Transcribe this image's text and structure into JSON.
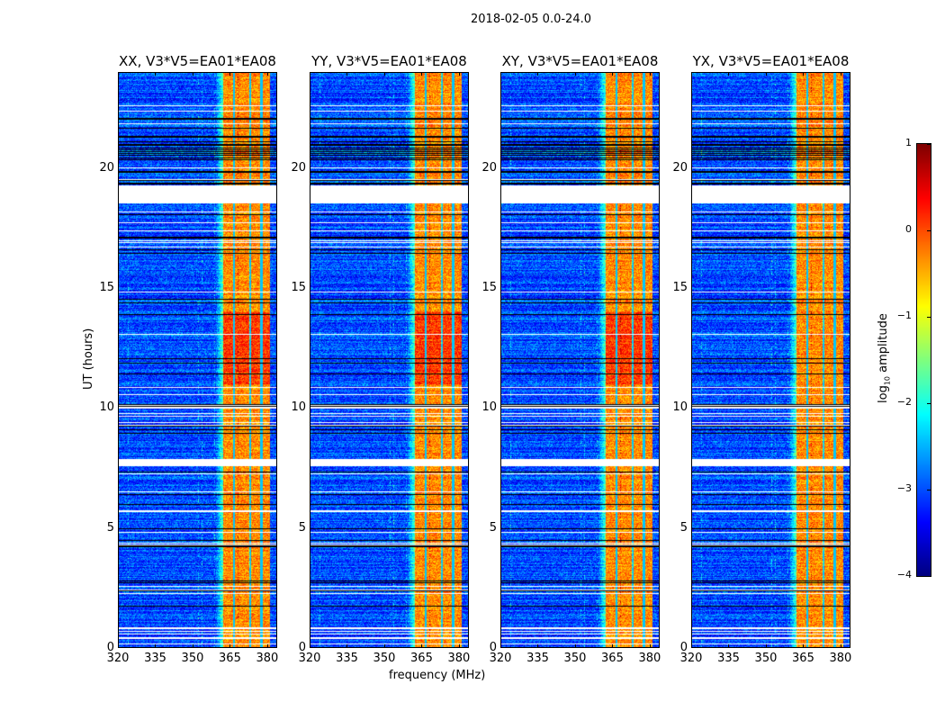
{
  "chart_data": {
    "type": "heatmap",
    "suptitle": "2018-02-05 0.0-24.0",
    "xlabel": "frequency (MHz)",
    "ylabel": "UT (hours)",
    "xlim": [
      320,
      384
    ],
    "ylim": [
      0,
      24
    ],
    "xticks": [
      "320",
      "335",
      "350",
      "365",
      "380"
    ],
    "xtick_values": [
      320,
      335,
      350,
      365,
      380
    ],
    "yticks": [
      "0",
      "5",
      "10",
      "15",
      "20"
    ],
    "ytick_values": [
      0,
      5,
      10,
      15,
      20
    ],
    "panels": [
      {
        "title": "XX, V3*V5=EA01*EA08"
      },
      {
        "title": "YY, V3*V5=EA01*EA08"
      },
      {
        "title": "XY, V3*V5=EA01*EA08"
      },
      {
        "title": "YX, V3*V5=EA01*EA08"
      }
    ],
    "colorbar": {
      "label": "log10 amplitude",
      "label_main": "log",
      "label_sub": "10",
      "label_rest": " amplitude",
      "clim": [
        -4,
        1
      ],
      "ticks": [
        "1",
        "0",
        "−1",
        "−2",
        "−3",
        "−4"
      ],
      "tick_values": [
        1,
        0,
        -1,
        -2,
        -3,
        -4
      ],
      "colormap": "jet"
    },
    "features": {
      "background_level": -3,
      "rfi_band_mhz": [
        362,
        381
      ],
      "rfi_band_level": -0.3,
      "no_data_ut_hours": [
        [
          18.6,
          19.3
        ],
        [
          7.6,
          7.9
        ]
      ]
    }
  }
}
